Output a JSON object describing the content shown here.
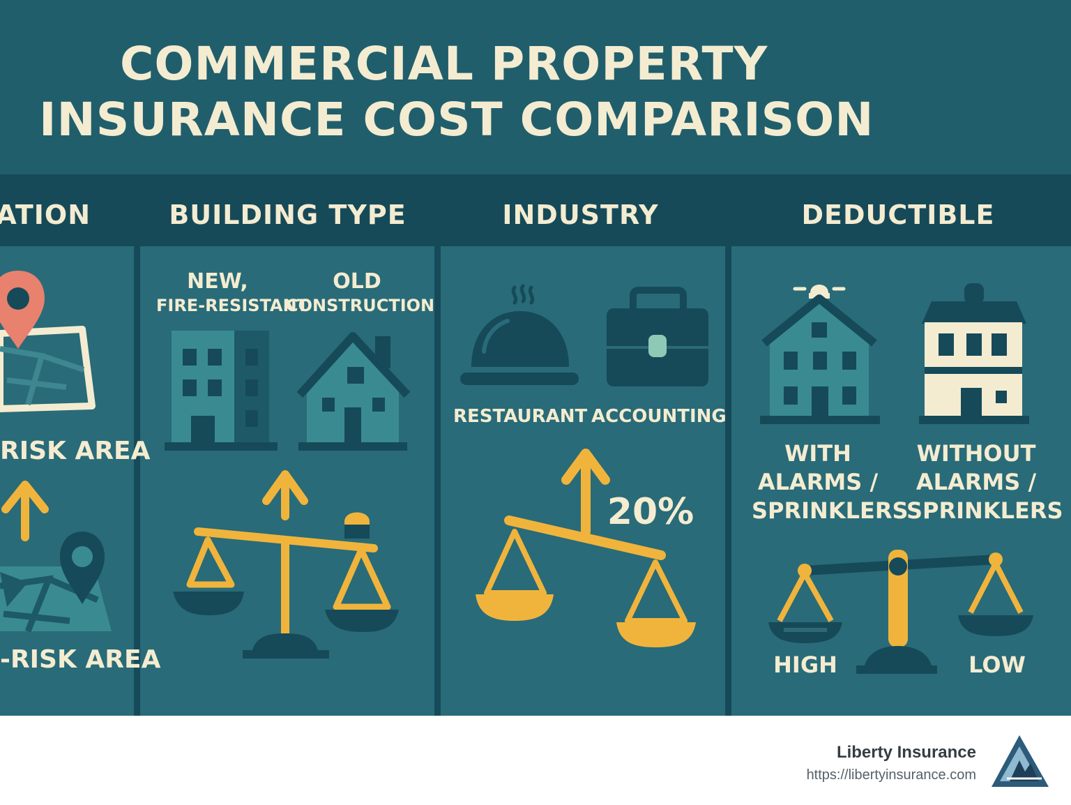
{
  "title": {
    "line1": "COMMERCIAL PROPERTY",
    "line2": "INSURANCE COST COMPARISON"
  },
  "columns": {
    "location": {
      "heading": "ATION",
      "top_label": "RISK AREA",
      "bottom_label": "-RISK AREA"
    },
    "building_type": {
      "heading": "BUILDING TYPE",
      "new_line1": "NEW,",
      "new_line2": "FIRE-RESISTANT",
      "old_line1": "OLD",
      "old_line2": "CONSTRUCTION"
    },
    "industry": {
      "heading": "INDUSTRY",
      "left_label": "RESTAURANT",
      "right_label": "ACCOUNTING",
      "percent": "20%"
    },
    "deductible": {
      "heading": "DEDUCTIBLE",
      "with_line1": "WITH",
      "with_line2": "ALARMS /",
      "with_line3": "SPRINKLERS",
      "without_line1": "WITHOUT",
      "without_line2": "ALARMS /",
      "without_line3": "SPRINKLERS",
      "high_label": "HIGH",
      "low_label": "LOW"
    }
  },
  "footer": {
    "brand": "Liberty Insurance",
    "url": "https://libertyinsurance.com"
  },
  "colors": {
    "background": "#296b78",
    "title_band": "#215e6c",
    "header_band": "#164a59",
    "text": "#f4ecd1",
    "accent": "#f0b43c",
    "pin": "#e8816e"
  },
  "icons": [
    "map-pin-icon",
    "map-icon",
    "office-building-icon",
    "house-icon",
    "cloche-icon",
    "briefcase-icon",
    "alarm-house-icon",
    "building-icon",
    "scale-icon",
    "up-arrow-icon",
    "logo-icon"
  ]
}
